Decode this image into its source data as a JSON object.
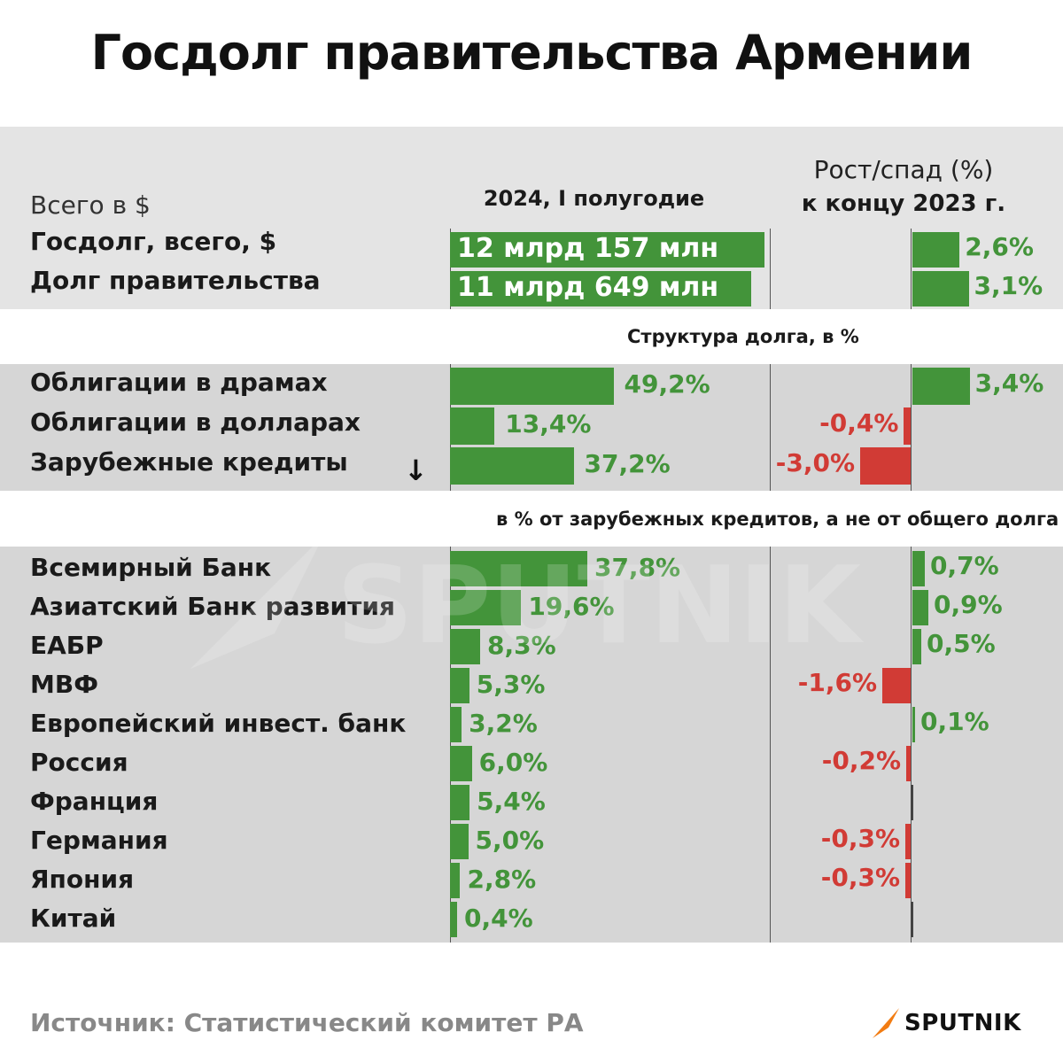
{
  "title": "Госдолг правительства Армении",
  "header": {
    "left_note": "Всего в $",
    "period": "2024, I полугодие",
    "change_line1": "Рост/спад (%)",
    "change_line2": "к концу 2023 г."
  },
  "structure_note": "Структура долга, в %",
  "foreign_note": "в % от зарубежных кредитов, а не от общего долга",
  "source": "Источник: Статистический комитет РА",
  "logo": "SPUTNIK",
  "watermark": "SPUTNIK",
  "colors": {
    "positive": "#43943a",
    "negative": "#d13b35",
    "band": "#e4e4e4",
    "band_dark": "#d6d6d6"
  },
  "chart_data": [
    {
      "type": "bar",
      "categories": [
        "Госдолг, всего, $",
        "Долг правительства"
      ],
      "values_usd": [
        12157000000,
        11649000000
      ],
      "value_labels": [
        "12 млрд 157 млн",
        "11 млрд 649 млн"
      ],
      "change_pct": [
        2.6,
        3.1
      ],
      "change_labels": [
        "2,6%",
        "3,1%"
      ]
    },
    {
      "type": "bar",
      "categories": [
        "Облигации в драмах",
        "Облигации в долларах",
        "Зарубежные кредиты"
      ],
      "values": [
        49.2,
        13.4,
        37.2
      ],
      "value_labels": [
        "49,2%",
        "13,4%",
        "37,2%"
      ],
      "change_pct": [
        3.4,
        -0.4,
        -3.0
      ],
      "change_labels": [
        "3,4%",
        "-0,4%",
        "-3,0%"
      ]
    },
    {
      "type": "bar",
      "categories": [
        "Всемирный Банк",
        "Азиатский Банк развития",
        "ЕАБР",
        "МВФ",
        "Европейский инвест. банк",
        "Россия",
        "Франция",
        "Германия",
        "Япония",
        "Китай"
      ],
      "values": [
        37.8,
        19.6,
        8.3,
        5.3,
        3.2,
        6.0,
        5.4,
        5.0,
        2.8,
        0.4
      ],
      "value_labels": [
        "37,8%",
        "19,6%",
        "8,3%",
        "5,3%",
        "3,2%",
        "6,0%",
        "5,4%",
        "5,0%",
        "2,8%",
        "0,4%"
      ],
      "change_pct": [
        0.7,
        0.9,
        0.5,
        -1.6,
        0.1,
        -0.2,
        0,
        -0.3,
        -0.3,
        0
      ],
      "change_labels": [
        "0,7%",
        "0,9%",
        "0,5%",
        "-1,6%",
        "0,1%",
        "-0,2%",
        "",
        "-0,3%",
        "-0,3%",
        ""
      ]
    }
  ]
}
